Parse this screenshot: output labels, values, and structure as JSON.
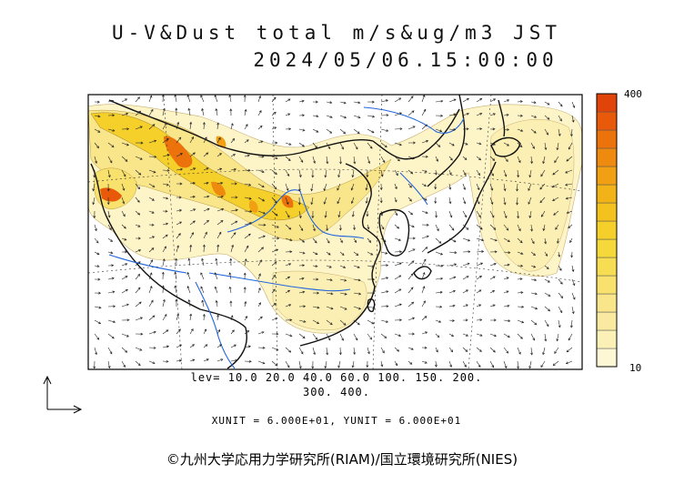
{
  "header": {
    "title": "U-V&Dust total m/s&ug/m3 JST",
    "datetime": "2024/05/06.15:00:00"
  },
  "legend": {
    "levels_line1": "lev= 10.0 20.0 40.0 60.0 100. 150. 200.",
    "levels_line2": "300. 400.",
    "colorbar_max": "400",
    "colorbar_min": "10",
    "colors": [
      "#fdf7d6",
      "#fbf0b6",
      "#fae9a0",
      "#f9e58a",
      "#f8e16c",
      "#f6dd52",
      "#f5d83a",
      "#f5cf2a",
      "#f3c21e",
      "#f2b318",
      "#f0a012",
      "#ee8a0e",
      "#ec720c",
      "#e85a0a",
      "#e04408"
    ]
  },
  "units": {
    "text": "XUNIT = 6.000E+01, YUNIT = 6.000E+01"
  },
  "credit": {
    "text": "©九州大学応用力学研究所(RIAM)/国立環境研究所(NIES)"
  },
  "colors": {
    "coast": "#111111",
    "river": "#2266dd",
    "arrow": "#222222",
    "frame": "#000000"
  }
}
